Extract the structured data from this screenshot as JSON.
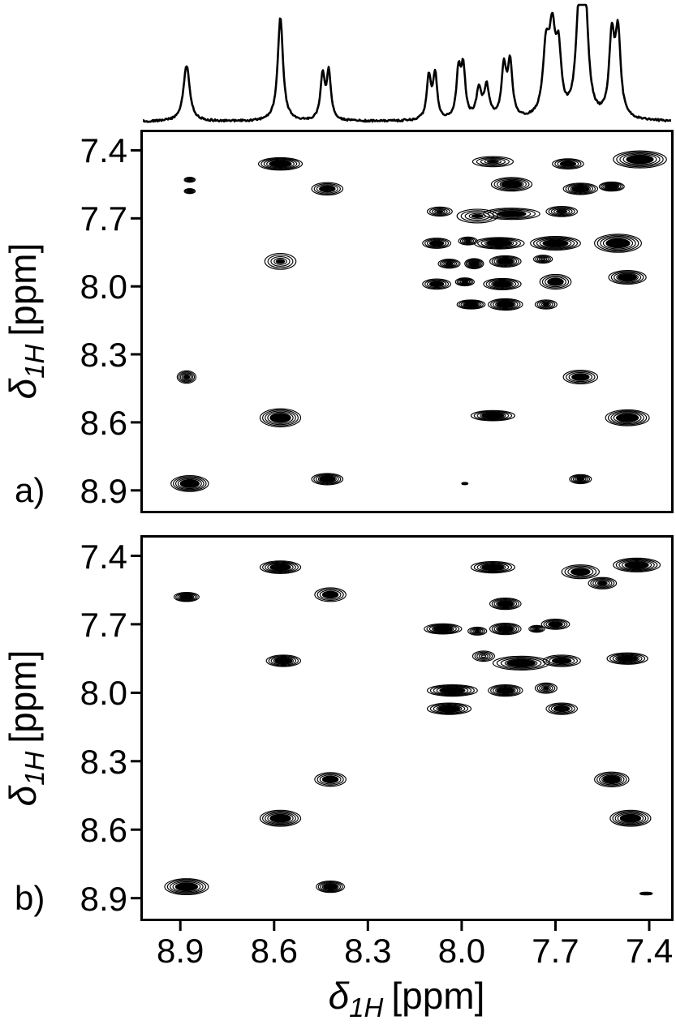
{
  "labels": {
    "panel_a": "a)",
    "panel_b": "b)",
    "axis_label": {
      "symbol": "δ",
      "subscript": "1H",
      "unit": "[ppm]"
    }
  },
  "colors": {
    "foreground": "#000000",
    "background": "#ffffff"
  },
  "chart_data": [
    {
      "id": "1d-trace",
      "type": "line",
      "title": "1H 1D projection trace",
      "xlabel": "δ1H [ppm]",
      "xlim": [
        9.02,
        7.33
      ],
      "peaks_columns": [
        "ppm",
        "rel_height",
        "width_ppm"
      ],
      "peaks": [
        [
          8.88,
          0.5,
          0.012
        ],
        [
          8.58,
          0.93,
          0.01
        ],
        [
          8.445,
          0.4,
          0.008
        ],
        [
          8.425,
          0.42,
          0.008
        ],
        [
          8.105,
          0.38,
          0.008
        ],
        [
          8.085,
          0.4,
          0.008
        ],
        [
          8.01,
          0.42,
          0.008
        ],
        [
          7.995,
          0.44,
          0.008
        ],
        [
          7.945,
          0.25,
          0.01
        ],
        [
          7.92,
          0.28,
          0.01
        ],
        [
          7.865,
          0.45,
          0.009
        ],
        [
          7.845,
          0.48,
          0.009
        ],
        [
          7.73,
          0.58,
          0.012
        ],
        [
          7.71,
          0.68,
          0.012
        ],
        [
          7.69,
          0.52,
          0.01
        ],
        [
          7.625,
          0.85,
          0.012
        ],
        [
          7.605,
          0.96,
          0.012
        ],
        [
          7.52,
          0.7,
          0.01
        ],
        [
          7.5,
          0.74,
          0.01
        ]
      ]
    },
    {
      "id": "panel-a",
      "type": "heatmap",
      "subtype": "2D NMR contour plot",
      "label": "a)",
      "xlabel": "δ1H [ppm]",
      "ylabel": "δ1H [ppm]",
      "xlim": [
        9.02,
        7.33
      ],
      "ylim": [
        7.32,
        8.99
      ],
      "xticks": [
        8.9,
        8.6,
        8.3,
        8.0,
        7.7,
        7.4
      ],
      "yticks": [
        7.4,
        7.7,
        8.0,
        8.3,
        8.6,
        8.9
      ],
      "peaks_columns": [
        "x_ppm",
        "y_ppm",
        "width_ppm",
        "height_ppm",
        "intensity"
      ],
      "peaks": [
        [
          8.58,
          7.46,
          0.14,
          0.055,
          0.95
        ],
        [
          8.87,
          7.53,
          0.035,
          0.022,
          0.35
        ],
        [
          8.87,
          7.58,
          0.035,
          0.022,
          0.35
        ],
        [
          8.43,
          7.57,
          0.1,
          0.055,
          0.65
        ],
        [
          7.9,
          7.45,
          0.13,
          0.045,
          0.45
        ],
        [
          7.84,
          7.55,
          0.13,
          0.06,
          0.85
        ],
        [
          7.66,
          7.46,
          0.1,
          0.045,
          0.6
        ],
        [
          7.62,
          7.57,
          0.11,
          0.05,
          0.8
        ],
        [
          7.43,
          7.44,
          0.17,
          0.075,
          1.0
        ],
        [
          7.52,
          7.56,
          0.08,
          0.04,
          0.7
        ],
        [
          8.07,
          7.67,
          0.08,
          0.04,
          0.4
        ],
        [
          7.95,
          7.69,
          0.13,
          0.06,
          0.35
        ],
        [
          7.84,
          7.68,
          0.18,
          0.05,
          0.55
        ],
        [
          7.68,
          7.67,
          0.1,
          0.045,
          0.5
        ],
        [
          8.08,
          7.81,
          0.09,
          0.045,
          0.55
        ],
        [
          7.98,
          7.8,
          0.06,
          0.035,
          0.45
        ],
        [
          7.88,
          7.81,
          0.16,
          0.05,
          0.85
        ],
        [
          7.7,
          7.81,
          0.16,
          0.06,
          0.9
        ],
        [
          7.5,
          7.81,
          0.15,
          0.08,
          0.95
        ],
        [
          8.58,
          7.89,
          0.1,
          0.07,
          0.35
        ],
        [
          8.04,
          7.9,
          0.07,
          0.04,
          0.5
        ],
        [
          7.96,
          7.9,
          0.06,
          0.045,
          0.75
        ],
        [
          7.86,
          7.89,
          0.1,
          0.05,
          0.8
        ],
        [
          7.74,
          7.88,
          0.06,
          0.035,
          0.3
        ],
        [
          8.08,
          7.99,
          0.09,
          0.045,
          0.6
        ],
        [
          7.99,
          7.98,
          0.06,
          0.035,
          0.5
        ],
        [
          7.87,
          7.99,
          0.12,
          0.05,
          0.8
        ],
        [
          7.7,
          7.98,
          0.1,
          0.065,
          0.55
        ],
        [
          7.47,
          7.96,
          0.12,
          0.06,
          0.85
        ],
        [
          7.97,
          8.08,
          0.09,
          0.04,
          0.7
        ],
        [
          7.86,
          8.08,
          0.11,
          0.05,
          0.75
        ],
        [
          7.73,
          8.08,
          0.07,
          0.04,
          0.45
        ],
        [
          8.88,
          8.4,
          0.06,
          0.055,
          0.5
        ],
        [
          7.62,
          8.4,
          0.11,
          0.06,
          0.55
        ],
        [
          8.58,
          8.58,
          0.13,
          0.08,
          1.0
        ],
        [
          7.9,
          8.57,
          0.14,
          0.045,
          0.85
        ],
        [
          7.47,
          8.58,
          0.14,
          0.07,
          1.0
        ],
        [
          8.87,
          8.87,
          0.12,
          0.07,
          0.95
        ],
        [
          8.43,
          8.85,
          0.1,
          0.05,
          0.8
        ],
        [
          7.99,
          8.87,
          0.02,
          0.01,
          0.2
        ],
        [
          7.62,
          8.85,
          0.07,
          0.04,
          0.5
        ]
      ]
    },
    {
      "id": "panel-b",
      "type": "heatmap",
      "subtype": "2D NMR contour plot",
      "label": "b)",
      "xlabel": "δ1H [ppm]",
      "ylabel": "δ1H [ppm]",
      "xlim": [
        9.02,
        7.33
      ],
      "ylim": [
        7.32,
        8.99
      ],
      "xticks": [
        8.9,
        8.6,
        8.3,
        8.0,
        7.7,
        7.4
      ],
      "yticks": [
        7.4,
        7.7,
        8.0,
        8.3,
        8.6,
        8.9
      ],
      "peaks_columns": [
        "x_ppm",
        "y_ppm",
        "width_ppm",
        "height_ppm",
        "intensity"
      ],
      "peaks": [
        [
          8.58,
          7.45,
          0.13,
          0.055,
          0.95
        ],
        [
          8.88,
          7.58,
          0.08,
          0.04,
          0.7
        ],
        [
          8.42,
          7.57,
          0.1,
          0.06,
          0.6
        ],
        [
          7.9,
          7.45,
          0.14,
          0.05,
          0.85
        ],
        [
          7.62,
          7.47,
          0.12,
          0.06,
          0.55
        ],
        [
          7.44,
          7.44,
          0.15,
          0.06,
          0.9
        ],
        [
          7.55,
          7.52,
          0.09,
          0.05,
          0.5
        ],
        [
          7.86,
          7.61,
          0.1,
          0.05,
          0.8
        ],
        [
          7.7,
          7.7,
          0.09,
          0.045,
          0.6
        ],
        [
          8.06,
          7.72,
          0.12,
          0.045,
          0.8
        ],
        [
          7.95,
          7.73,
          0.06,
          0.035,
          0.45
        ],
        [
          7.86,
          7.72,
          0.1,
          0.05,
          0.85
        ],
        [
          7.76,
          7.72,
          0.05,
          0.03,
          0.35
        ],
        [
          8.57,
          7.86,
          0.11,
          0.05,
          0.8
        ],
        [
          7.93,
          7.84,
          0.07,
          0.045,
          0.3
        ],
        [
          7.81,
          7.87,
          0.18,
          0.06,
          0.85
        ],
        [
          7.68,
          7.86,
          0.12,
          0.05,
          0.6
        ],
        [
          7.47,
          7.85,
          0.13,
          0.05,
          0.85
        ],
        [
          8.03,
          7.99,
          0.16,
          0.05,
          0.9
        ],
        [
          7.86,
          7.99,
          0.11,
          0.05,
          0.85
        ],
        [
          7.73,
          7.98,
          0.07,
          0.045,
          0.45
        ],
        [
          8.04,
          8.07,
          0.14,
          0.05,
          0.85
        ],
        [
          7.68,
          8.07,
          0.1,
          0.05,
          0.6
        ],
        [
          8.42,
          8.38,
          0.1,
          0.06,
          0.6
        ],
        [
          7.52,
          8.38,
          0.11,
          0.065,
          0.7
        ],
        [
          8.58,
          8.55,
          0.13,
          0.07,
          0.95
        ],
        [
          7.46,
          8.55,
          0.13,
          0.07,
          0.95
        ],
        [
          8.88,
          8.85,
          0.14,
          0.07,
          0.95
        ],
        [
          8.42,
          8.85,
          0.09,
          0.05,
          0.75
        ],
        [
          7.41,
          8.88,
          0.04,
          0.012,
          0.3
        ]
      ]
    }
  ]
}
